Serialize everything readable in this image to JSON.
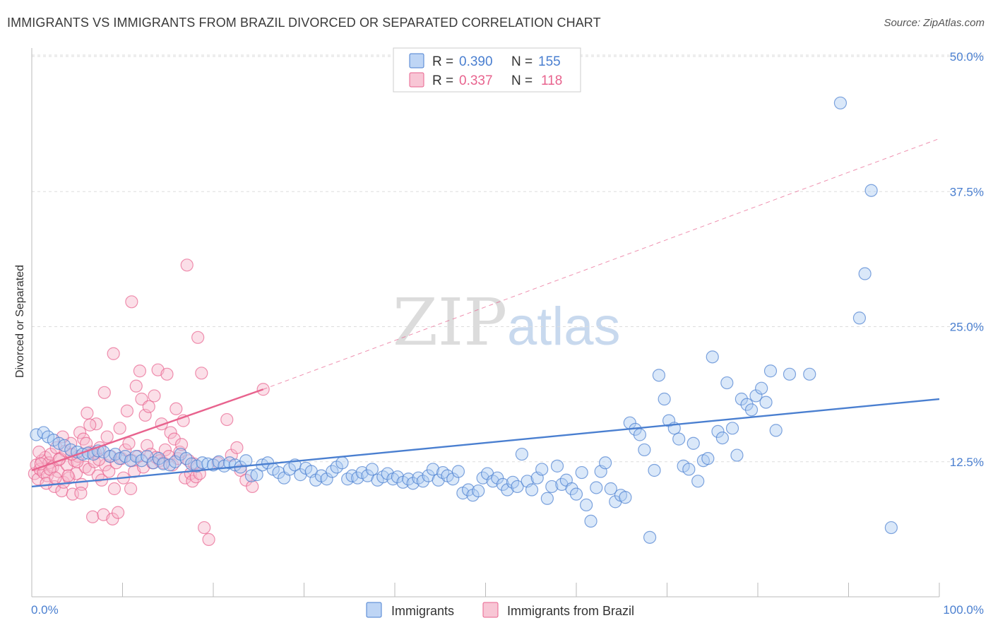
{
  "header": {
    "title": "IMMIGRANTS VS IMMIGRANTS FROM BRAZIL DIVORCED OR SEPARATED CORRELATION CHART",
    "source": "Source: ZipAtlas.com"
  },
  "watermark": {
    "zip": "ZIP",
    "atlas": "atlas"
  },
  "legend": {
    "r_label": "R =",
    "n_label": "N =",
    "rows": [
      {
        "r": "0.390",
        "n": "155",
        "color": "#4a7fd0",
        "fill": "#aecbf2"
      },
      {
        "r": "0.337",
        "n": "118",
        "color": "#e8638e",
        "fill": "#f6b8cb"
      }
    ]
  },
  "bottom_legend": [
    "Immigrants",
    "Immigrants from Brazil"
  ],
  "chart_data": {
    "type": "scatter",
    "ylabel": "Divorced or Separated",
    "xlabel": "",
    "xlim": [
      0,
      100
    ],
    "ylim": [
      0,
      50
    ],
    "x_tick_labels": [
      "0.0%",
      "100.0%"
    ],
    "y_ticks": [
      12.5,
      25.0,
      37.5,
      50.0
    ],
    "y_tick_labels": [
      "12.5%",
      "25.0%",
      "37.5%",
      "50.0%"
    ],
    "grid": "horizontal dashed",
    "legend_placement": "top-center",
    "series": [
      {
        "name": "Immigrants",
        "color": "#4a7fd0",
        "fill": "#aecbf2",
        "trend": {
          "x": [
            0,
            100
          ],
          "y": [
            10.2,
            18.3
          ]
        },
        "points": [
          [
            0.5,
            15.0
          ],
          [
            1.3,
            15.2
          ],
          [
            1.8,
            14.8
          ],
          [
            2.4,
            14.5
          ],
          [
            3.0,
            14.2
          ],
          [
            3.6,
            14.0
          ],
          [
            4.3,
            13.6
          ],
          [
            5.0,
            13.4
          ],
          [
            5.6,
            13.2
          ],
          [
            6.2,
            13.3
          ],
          [
            6.8,
            13.2
          ],
          [
            7.3,
            13.5
          ],
          [
            7.9,
            13.4
          ],
          [
            8.6,
            13.0
          ],
          [
            9.2,
            13.2
          ],
          [
            9.7,
            12.8
          ],
          [
            10.3,
            13.0
          ],
          [
            10.9,
            12.6
          ],
          [
            11.5,
            13.0
          ],
          [
            12.1,
            12.6
          ],
          [
            12.7,
            13.0
          ],
          [
            13.4,
            12.4
          ],
          [
            14.0,
            12.8
          ],
          [
            14.5,
            12.3
          ],
          [
            15.2,
            12.2
          ],
          [
            15.8,
            12.5
          ],
          [
            16.4,
            13.2
          ],
          [
            17.0,
            12.8
          ],
          [
            17.6,
            12.3
          ],
          [
            18.2,
            12.1
          ],
          [
            18.8,
            12.4
          ],
          [
            19.4,
            12.3
          ],
          [
            20.0,
            12.2
          ],
          [
            20.6,
            12.5
          ],
          [
            21.2,
            12.1
          ],
          [
            21.8,
            12.4
          ],
          [
            22.4,
            12.2
          ],
          [
            23.0,
            12.0
          ],
          [
            23.6,
            12.6
          ],
          [
            24.2,
            11.2
          ],
          [
            24.8,
            11.3
          ],
          [
            25.4,
            12.2
          ],
          [
            26.0,
            12.4
          ],
          [
            26.6,
            11.8
          ],
          [
            27.2,
            11.5
          ],
          [
            27.8,
            11.0
          ],
          [
            28.4,
            11.8
          ],
          [
            29.0,
            12.2
          ],
          [
            29.6,
            11.3
          ],
          [
            30.2,
            11.9
          ],
          [
            30.8,
            11.6
          ],
          [
            31.3,
            10.8
          ],
          [
            31.9,
            11.2
          ],
          [
            32.5,
            10.9
          ],
          [
            33.1,
            11.6
          ],
          [
            33.6,
            12.0
          ],
          [
            34.2,
            12.4
          ],
          [
            34.8,
            10.9
          ],
          [
            35.3,
            11.2
          ],
          [
            35.9,
            11.0
          ],
          [
            36.4,
            11.5
          ],
          [
            37.0,
            11.2
          ],
          [
            37.5,
            11.8
          ],
          [
            38.1,
            10.8
          ],
          [
            38.7,
            11.1
          ],
          [
            39.2,
            11.4
          ],
          [
            39.8,
            10.9
          ],
          [
            40.3,
            11.1
          ],
          [
            40.9,
            10.6
          ],
          [
            41.5,
            10.9
          ],
          [
            42.0,
            10.5
          ],
          [
            42.6,
            11.0
          ],
          [
            43.1,
            10.7
          ],
          [
            43.7,
            11.2
          ],
          [
            44.2,
            11.8
          ],
          [
            44.8,
            10.8
          ],
          [
            45.3,
            11.5
          ],
          [
            45.8,
            11.2
          ],
          [
            46.4,
            10.9
          ],
          [
            47.0,
            11.6
          ],
          [
            47.5,
            9.6
          ],
          [
            48.1,
            9.9
          ],
          [
            48.6,
            9.4
          ],
          [
            49.2,
            9.8
          ],
          [
            49.7,
            11.0
          ],
          [
            50.2,
            11.4
          ],
          [
            50.8,
            10.7
          ],
          [
            51.3,
            11.0
          ],
          [
            51.9,
            10.4
          ],
          [
            52.4,
            9.9
          ],
          [
            53.0,
            10.6
          ],
          [
            53.5,
            10.2
          ],
          [
            54.0,
            13.2
          ],
          [
            54.6,
            10.7
          ],
          [
            55.1,
            9.9
          ],
          [
            55.7,
            11.0
          ],
          [
            56.2,
            11.8
          ],
          [
            56.8,
            9.1
          ],
          [
            57.3,
            10.2
          ],
          [
            57.9,
            12.1
          ],
          [
            58.4,
            10.4
          ],
          [
            58.9,
            10.8
          ],
          [
            59.5,
            10.0
          ],
          [
            60.0,
            9.5
          ],
          [
            60.6,
            11.5
          ],
          [
            61.1,
            8.5
          ],
          [
            61.6,
            7.0
          ],
          [
            62.2,
            10.1
          ],
          [
            62.7,
            11.6
          ],
          [
            63.2,
            12.4
          ],
          [
            63.8,
            10.0
          ],
          [
            64.3,
            8.8
          ],
          [
            64.9,
            9.4
          ],
          [
            65.4,
            9.2
          ],
          [
            65.9,
            16.1
          ],
          [
            66.5,
            15.5
          ],
          [
            67.0,
            15.0
          ],
          [
            67.5,
            13.6
          ],
          [
            68.1,
            5.5
          ],
          [
            68.6,
            11.7
          ],
          [
            69.1,
            20.5
          ],
          [
            69.7,
            18.3
          ],
          [
            70.2,
            16.3
          ],
          [
            70.8,
            15.6
          ],
          [
            71.3,
            14.6
          ],
          [
            71.8,
            12.1
          ],
          [
            72.4,
            11.8
          ],
          [
            72.9,
            14.2
          ],
          [
            73.4,
            10.7
          ],
          [
            74.0,
            12.6
          ],
          [
            74.5,
            12.8
          ],
          [
            75.0,
            22.2
          ],
          [
            75.6,
            15.3
          ],
          [
            76.1,
            14.7
          ],
          [
            76.6,
            19.8
          ],
          [
            77.2,
            15.6
          ],
          [
            77.7,
            13.1
          ],
          [
            78.2,
            18.3
          ],
          [
            78.8,
            17.8
          ],
          [
            79.3,
            17.3
          ],
          [
            79.8,
            18.6
          ],
          [
            80.4,
            19.3
          ],
          [
            80.9,
            18.0
          ],
          [
            81.4,
            20.9
          ],
          [
            82.0,
            15.4
          ],
          [
            83.5,
            20.6
          ],
          [
            85.7,
            20.6
          ],
          [
            89.1,
            45.7
          ],
          [
            91.2,
            25.8
          ],
          [
            91.8,
            29.9
          ],
          [
            92.5,
            37.6
          ],
          [
            94.7,
            6.4
          ]
        ]
      },
      {
        "name": "Immigrants from Brazil",
        "color": "#e8638e",
        "fill": "#f6b8cb",
        "trend": {
          "x": [
            0,
            25.5
          ],
          "y": [
            11.7,
            19.2
          ]
        },
        "trend_dashed": {
          "x": [
            25.5,
            100
          ],
          "y": [
            19.2,
            42.4
          ]
        },
        "points": [
          [
            0.3,
            11.4
          ],
          [
            0.5,
            12.2
          ],
          [
            0.7,
            10.9
          ],
          [
            0.9,
            11.8
          ],
          [
            1.1,
            12.6
          ],
          [
            1.3,
            11.5
          ],
          [
            1.5,
            12.9
          ],
          [
            1.7,
            11.2
          ],
          [
            1.9,
            12.4
          ],
          [
            2.1,
            13.2
          ],
          [
            2.3,
            12.0
          ],
          [
            2.5,
            10.2
          ],
          [
            2.7,
            13.8
          ],
          [
            2.9,
            11.6
          ],
          [
            3.1,
            12.8
          ],
          [
            3.3,
            9.8
          ],
          [
            3.5,
            10.6
          ],
          [
            3.7,
            13.5
          ],
          [
            3.9,
            12.2
          ],
          [
            4.1,
            11.0
          ],
          [
            4.3,
            14.2
          ],
          [
            4.5,
            9.5
          ],
          [
            4.7,
            12.6
          ],
          [
            4.9,
            11.4
          ],
          [
            5.1,
            13.0
          ],
          [
            5.3,
            15.2
          ],
          [
            5.5,
            10.4
          ],
          [
            5.7,
            14.6
          ],
          [
            5.9,
            12.0
          ],
          [
            6.1,
            17.0
          ],
          [
            6.3,
            11.8
          ],
          [
            6.5,
            13.4
          ],
          [
            6.7,
            7.4
          ],
          [
            6.9,
            12.5
          ],
          [
            7.1,
            16.0
          ],
          [
            7.3,
            11.2
          ],
          [
            7.5,
            13.8
          ],
          [
            7.7,
            10.8
          ],
          [
            7.9,
            7.6
          ],
          [
            8.1,
            12.2
          ],
          [
            8.3,
            14.8
          ],
          [
            8.5,
            11.6
          ],
          [
            8.7,
            13.0
          ],
          [
            8.9,
            7.2
          ],
          [
            9.1,
            10.0
          ],
          [
            9.3,
            12.4
          ],
          [
            9.5,
            7.8
          ],
          [
            9.7,
            15.6
          ],
          [
            9.9,
            12.8
          ],
          [
            10.1,
            11.0
          ],
          [
            10.3,
            13.6
          ],
          [
            10.5,
            17.2
          ],
          [
            10.7,
            14.2
          ],
          [
            10.9,
            10.0
          ],
          [
            11.1,
            12.6
          ],
          [
            11.3,
            11.6
          ],
          [
            11.5,
            19.5
          ],
          [
            11.7,
            13.0
          ],
          [
            11.9,
            20.9
          ],
          [
            12.1,
            18.3
          ],
          [
            12.3,
            12.0
          ],
          [
            12.5,
            16.8
          ],
          [
            12.7,
            14.0
          ],
          [
            12.9,
            17.6
          ],
          [
            13.1,
            13.2
          ],
          [
            13.3,
            12.4
          ],
          [
            13.5,
            18.6
          ],
          [
            13.7,
            12.9
          ],
          [
            13.9,
            21.0
          ],
          [
            14.1,
            12.6
          ],
          [
            14.3,
            16.0
          ],
          [
            14.5,
            12.4
          ],
          [
            14.7,
            13.6
          ],
          [
            14.9,
            20.6
          ],
          [
            15.1,
            13.0
          ],
          [
            15.3,
            15.2
          ],
          [
            15.5,
            12.2
          ],
          [
            15.7,
            14.6
          ],
          [
            15.9,
            17.4
          ],
          [
            16.1,
            12.8
          ],
          [
            16.3,
            13.4
          ],
          [
            16.5,
            14.1
          ],
          [
            16.7,
            16.3
          ],
          [
            16.9,
            11.0
          ],
          [
            17.1,
            30.7
          ],
          [
            17.3,
            12.6
          ],
          [
            17.5,
            11.4
          ],
          [
            17.7,
            10.7
          ],
          [
            17.9,
            12.3
          ],
          [
            18.1,
            11.1
          ],
          [
            18.3,
            24.0
          ],
          [
            18.5,
            11.4
          ],
          [
            18.7,
            20.7
          ],
          [
            19.0,
            6.4
          ],
          [
            19.5,
            5.3
          ],
          [
            20.5,
            12.4
          ],
          [
            21.5,
            16.4
          ],
          [
            22.0,
            13.1
          ],
          [
            22.6,
            13.8
          ],
          [
            23.0,
            11.7
          ],
          [
            23.6,
            10.8
          ],
          [
            24.3,
            10.2
          ],
          [
            25.5,
            19.2
          ],
          [
            9.0,
            22.5
          ],
          [
            11.0,
            27.3
          ],
          [
            8.0,
            18.9
          ],
          [
            7.0,
            13.3
          ],
          [
            6.0,
            14.2
          ],
          [
            5.0,
            12.5
          ],
          [
            4.0,
            11.2
          ],
          [
            3.0,
            12.7
          ],
          [
            2.0,
            11.8
          ],
          [
            1.0,
            12.3
          ],
          [
            0.8,
            13.4
          ],
          [
            1.6,
            10.5
          ],
          [
            2.6,
            11.0
          ],
          [
            3.4,
            14.8
          ],
          [
            4.4,
            13.2
          ],
          [
            5.4,
            9.6
          ],
          [
            6.4,
            15.9
          ],
          [
            7.4,
            12.7
          ]
        ]
      }
    ]
  }
}
